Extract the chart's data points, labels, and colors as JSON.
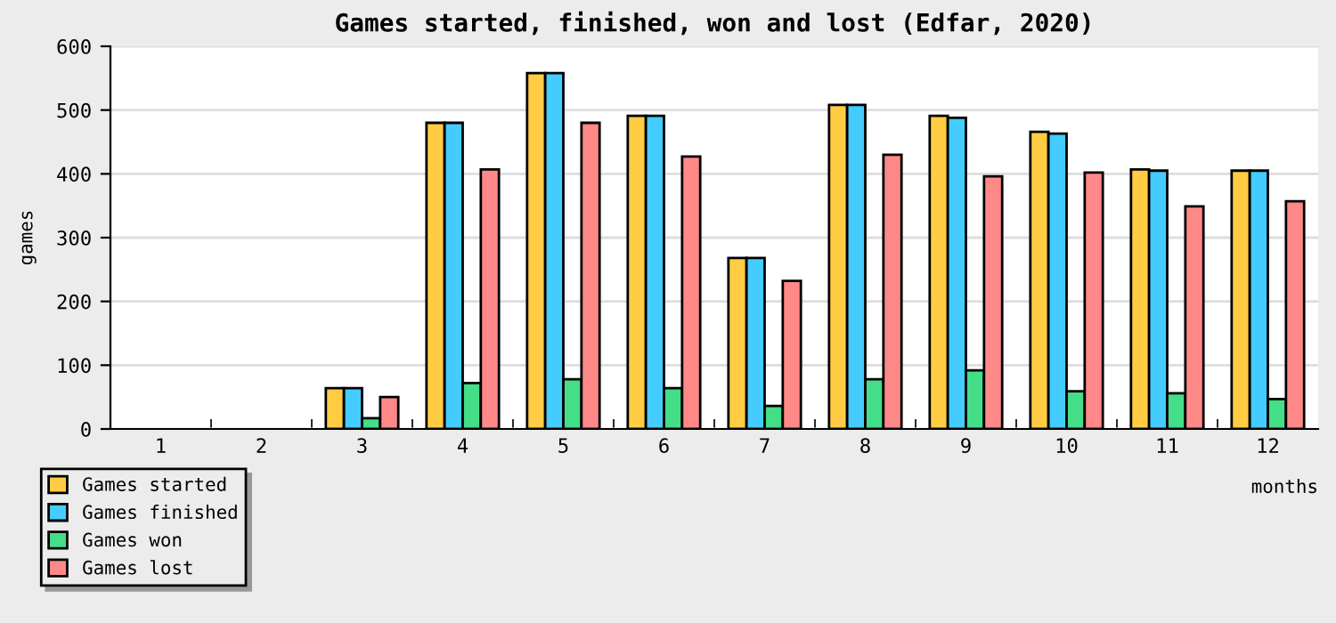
{
  "chart_data": {
    "type": "bar",
    "title": "Games started, finished, won and lost (Edfar, 2020)",
    "xlabel": "months",
    "ylabel": "games",
    "categories": [
      "1",
      "2",
      "3",
      "4",
      "5",
      "6",
      "7",
      "8",
      "9",
      "10",
      "11",
      "12"
    ],
    "series": [
      {
        "name": "Games started",
        "color": "#ffcc44",
        "values": [
          0,
          0,
          64,
          480,
          558,
          491,
          268,
          508,
          491,
          466,
          407,
          405
        ]
      },
      {
        "name": "Games finished",
        "color": "#44ccff",
        "values": [
          0,
          0,
          64,
          480,
          558,
          491,
          268,
          508,
          488,
          463,
          405,
          405
        ]
      },
      {
        "name": "Games won",
        "color": "#44dd88",
        "values": [
          0,
          0,
          17,
          72,
          78,
          64,
          36,
          78,
          92,
          59,
          56,
          47
        ]
      },
      {
        "name": "Games lost",
        "color": "#ff8888",
        "values": [
          0,
          0,
          50,
          407,
          480,
          427,
          232,
          430,
          396,
          402,
          349,
          357
        ]
      }
    ],
    "ylim": [
      0,
      600
    ],
    "yticks": [
      0,
      100,
      200,
      300,
      400,
      500,
      600
    ],
    "grid": "y",
    "legend": "bottom left"
  }
}
